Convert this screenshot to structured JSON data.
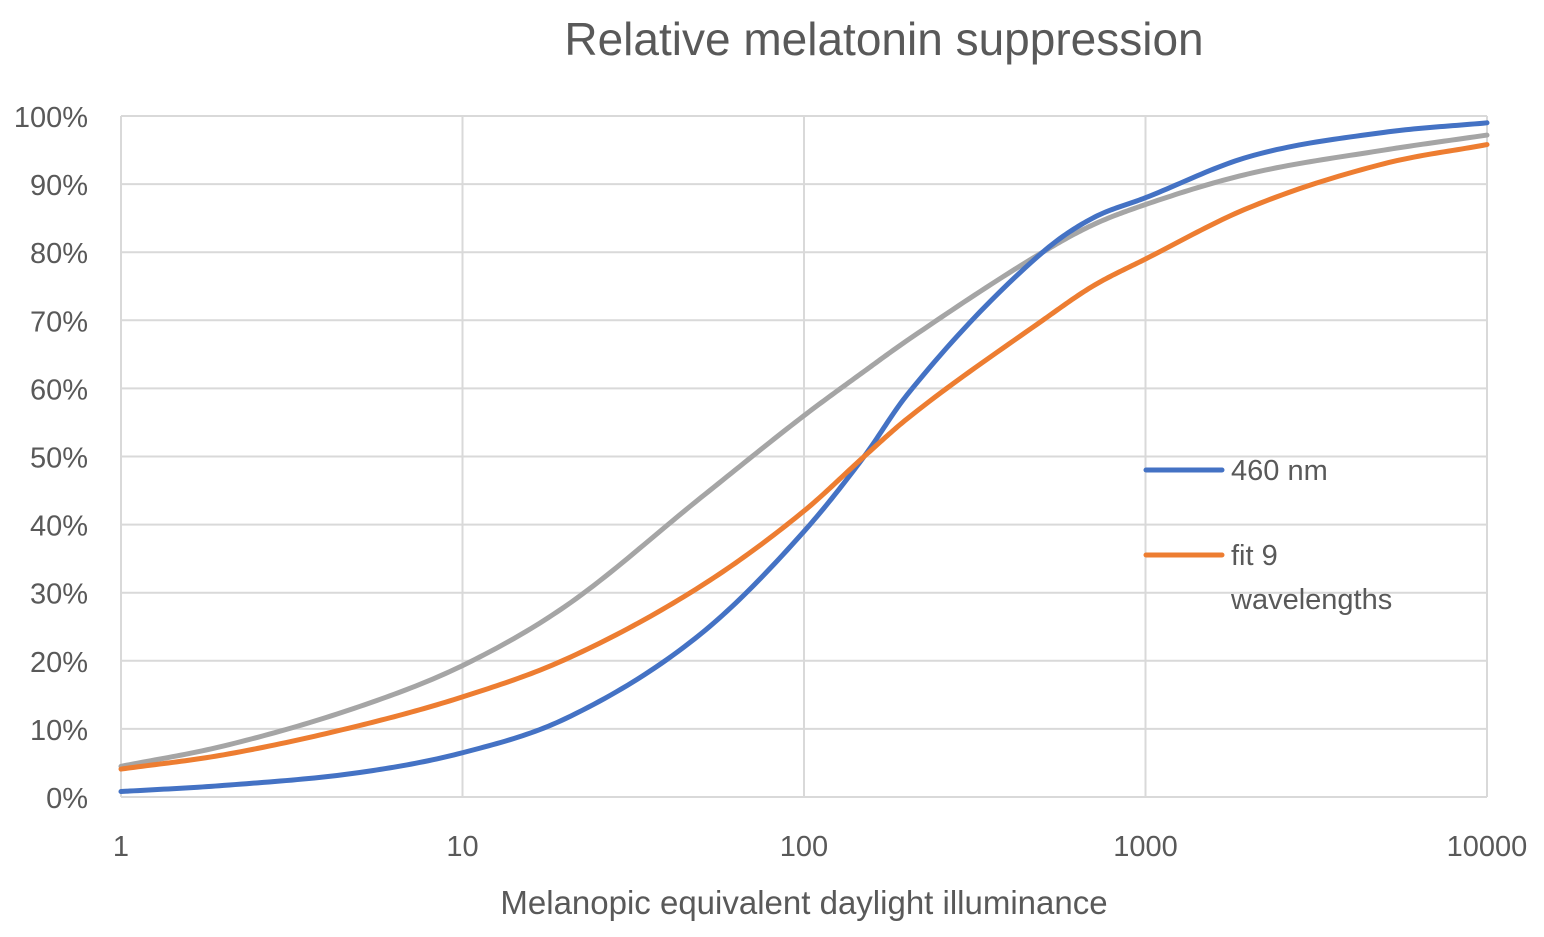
{
  "chart_data": {
    "type": "line",
    "title": "Relative melatonin suppression",
    "xlabel": "Melanopic equivalent daylight illuminance",
    "ylabel": "",
    "xscale": "log",
    "xlim": [
      1,
      10000
    ],
    "ylim": [
      0,
      100
    ],
    "grid": true,
    "legend_position": "right",
    "x_ticks": [
      1,
      10,
      100,
      1000,
      10000
    ],
    "x_tick_labels": [
      "1",
      "10",
      "100",
      "1000",
      "10000"
    ],
    "y_ticks": [
      0,
      10,
      20,
      30,
      40,
      50,
      60,
      70,
      80,
      90,
      100
    ],
    "y_tick_labels": [
      "0%",
      "10%",
      "20%",
      "30%",
      "40%",
      "50%",
      "60%",
      "70%",
      "80%",
      "90%",
      "100%"
    ],
    "x": [
      1,
      2,
      5,
      10,
      20,
      50,
      100,
      150,
      200,
      500,
      700,
      1000,
      2000,
      5000,
      10000
    ],
    "series": [
      {
        "name": "460 nm",
        "color": "#4472c4",
        "values": [
          0.8,
          1.7,
          3.6,
          6.5,
          11.5,
          24,
          39,
          50,
          59,
          80,
          85,
          88,
          94,
          97.6,
          99
        ]
      },
      {
        "name": "fit 9 wavelengths",
        "color": "#ed7d31",
        "values": [
          4.1,
          6.2,
          10.5,
          14.7,
          20.2,
          31,
          42,
          50,
          55.5,
          70,
          75,
          79,
          86.5,
          93,
          95.8
        ]
      },
      {
        "name": "",
        "color": "#a5a5a5",
        "values": [
          4.5,
          7.5,
          13.3,
          19.3,
          28,
          44,
          56,
          62.5,
          67,
          80,
          84,
          87,
          91.5,
          95,
          97.2
        ]
      }
    ],
    "legend": [
      {
        "series": 0,
        "lines": [
          "460 nm"
        ]
      },
      {
        "series": 1,
        "lines": [
          "fit 9",
          "wavelengths"
        ]
      }
    ]
  }
}
